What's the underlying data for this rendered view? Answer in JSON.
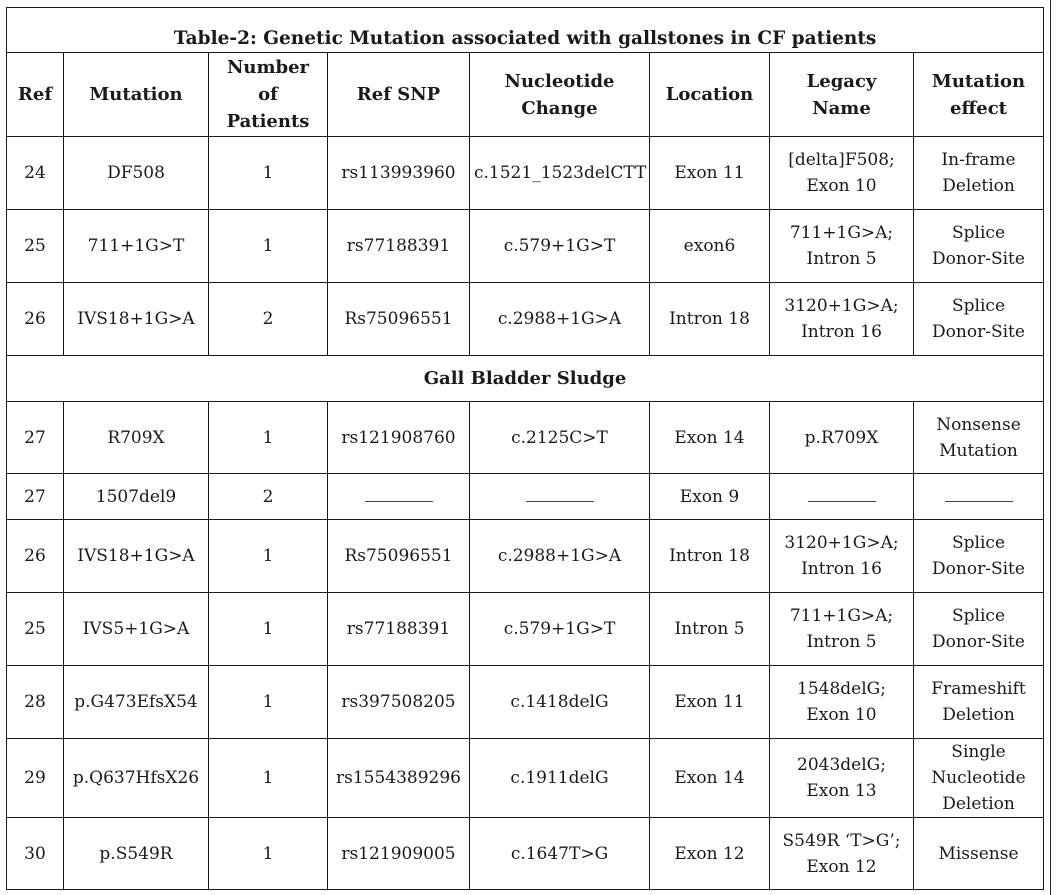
{
  "table": {
    "title": "Table-2: Genetic Mutation associated with gallstones in CF patients",
    "headers": [
      "Ref",
      "Mutation",
      "Number\nof\nPatients",
      "Ref SNP",
      "Nucleotide\nChange",
      "Location",
      "Legacy\nName",
      "Mutation\neffect"
    ],
    "rows_group1": [
      {
        "ref": "24",
        "mutation": "DF508",
        "patients": "1",
        "snp": "rs113993960",
        "nucleotide": "c.1521_1523delCTT",
        "location": "Exon 11",
        "legacy": "[delta]F508;\nExon 10",
        "effect": "In-frame\nDeletion"
      },
      {
        "ref": "25",
        "mutation": "711+1G>T",
        "patients": "1",
        "snp": "rs77188391",
        "nucleotide": "c.579+1G>T",
        "location": "exon6",
        "legacy": "711+1G>A;\nIntron 5",
        "effect": "Splice\nDonor-Site"
      },
      {
        "ref": "26",
        "mutation": "IVS18+1G>A",
        "patients": "2",
        "snp": "Rs75096551",
        "nucleotide": "c.2988+1G>A",
        "location": "Intron 18",
        "legacy": "3120+1G>A;\nIntron 16",
        "effect": "Splice\nDonor-Site"
      }
    ],
    "section_label": "Gall Bladder Sludge",
    "rows_group2": [
      {
        "ref": "27",
        "mutation": "R709X",
        "patients": "1",
        "snp": "rs121908760",
        "nucleotide": "c.2125C>T",
        "location": "Exon 14",
        "legacy": "p.R709X",
        "effect": "Nonsense\nMutation"
      },
      {
        "ref": "27",
        "mutation": "1507del9",
        "patients": "2",
        "snp": "",
        "nucleotide": "",
        "location": "Exon 9",
        "legacy": "",
        "effect": ""
      },
      {
        "ref": "26",
        "mutation": "IVS18+1G>A",
        "patients": "1",
        "snp": "Rs75096551",
        "nucleotide": "c.2988+1G>A",
        "location": "Intron 18",
        "legacy": "3120+1G>A;\nIntron 16",
        "effect": "Splice\nDonor-Site"
      },
      {
        "ref": "25",
        "mutation": "IVS5+1G>A",
        "patients": "1",
        "snp": "rs77188391",
        "nucleotide": "c.579+1G>T",
        "location": "Intron 5",
        "legacy": "711+1G>A;\nIntron 5",
        "effect": "Splice\nDonor-Site"
      },
      {
        "ref": "28",
        "mutation": "p.G473EfsX54",
        "patients": "1",
        "snp": "rs397508205",
        "nucleotide": "c.1418delG",
        "location": "Exon 11",
        "legacy": "1548delG;\nExon 10",
        "effect": "Frameshift\nDeletion"
      },
      {
        "ref": "29",
        "mutation": "p.Q637HfsX26",
        "patients": "1",
        "snp": "rs1554389296",
        "nucleotide": "c.1911delG",
        "location": "Exon 14",
        "legacy": "2043delG;\nExon 13",
        "effect": "Single\nNucleotide\nDeletion"
      },
      {
        "ref": "30",
        "mutation": "p.S549R",
        "patients": "1",
        "snp": "rs121909005",
        "nucleotide": "c.1647T>G",
        "location": "Exon 12",
        "legacy": "S549R ‘T>G’;\nExon 12",
        "effect": "Missense"
      }
    ],
    "row_heights_group1": [
      73,
      73,
      73
    ],
    "row_heights_group2": [
      72,
      46,
      73,
      73,
      73,
      79,
      72
    ]
  }
}
